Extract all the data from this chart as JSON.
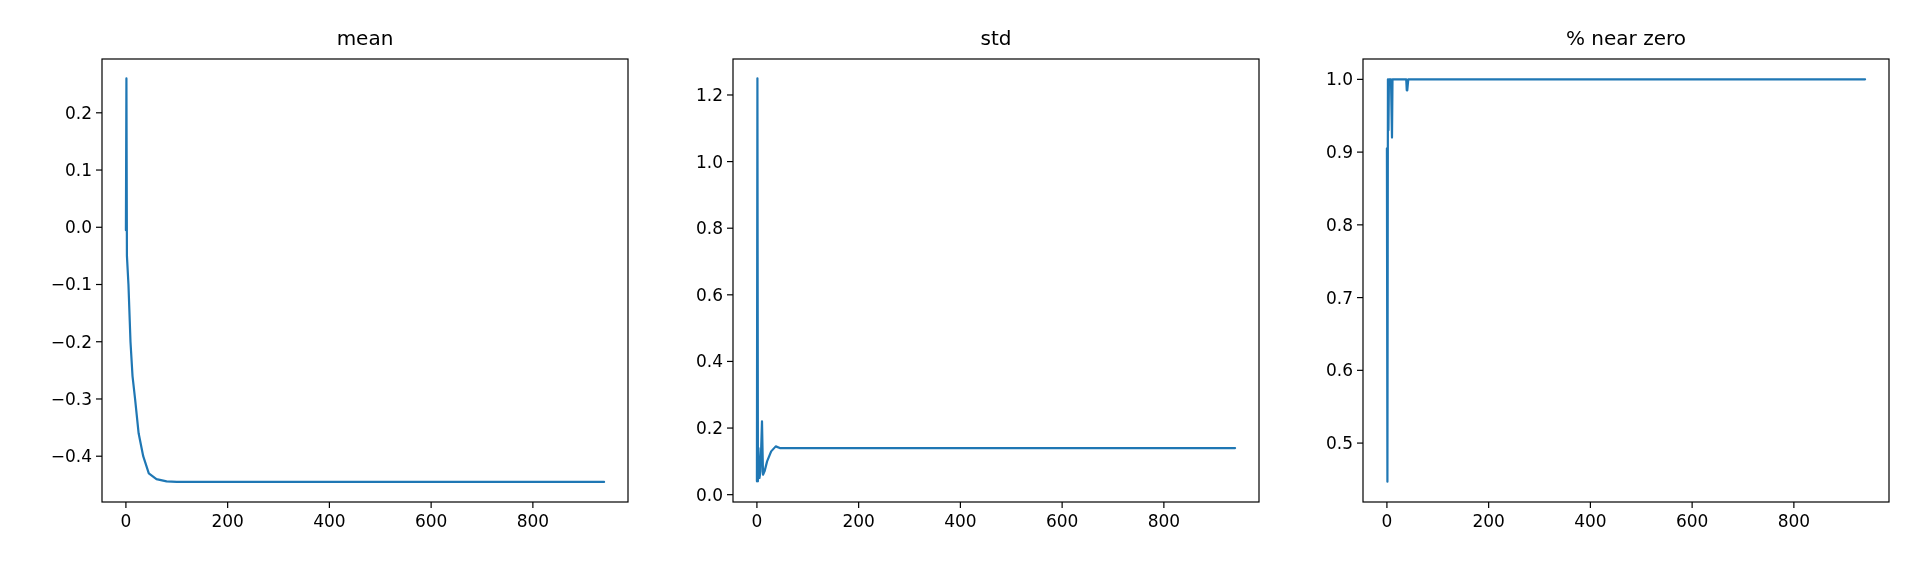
{
  "chart_data": [
    {
      "type": "line",
      "title": "mean",
      "x": [
        0,
        1,
        2,
        5,
        9,
        13,
        18,
        25,
        34,
        45,
        60,
        80,
        100,
        940
      ],
      "series": [
        {
          "color": "#1f77b4",
          "values": [
            -0.005,
            0.26,
            -0.05,
            -0.1,
            -0.2,
            -0.26,
            -0.3,
            -0.36,
            -0.4,
            -0.43,
            -0.44,
            -0.444,
            -0.445,
            -0.445
          ]
        }
      ],
      "xlim": [
        -47,
        987
      ],
      "ylim": [
        -0.48,
        0.294
      ],
      "xticks": [
        0,
        200,
        400,
        600,
        800
      ],
      "yticks": [
        {
          "value": -0.4,
          "label": "−0.4"
        },
        {
          "value": -0.3,
          "label": "−0.3"
        },
        {
          "value": -0.2,
          "label": "−0.2"
        },
        {
          "value": -0.1,
          "label": "−0.1"
        },
        {
          "value": 0,
          "label": "0.0"
        },
        {
          "value": 0.1,
          "label": "0.1"
        },
        {
          "value": 0.2,
          "label": "0.2"
        }
      ]
    },
    {
      "type": "line",
      "title": "std",
      "x": [
        0,
        1,
        2,
        3,
        5,
        7,
        10,
        12,
        15,
        20,
        28,
        37,
        45,
        940
      ],
      "series": [
        {
          "color": "#1f77b4",
          "values": [
            0.04,
            1.25,
            0.04,
            0.14,
            0.05,
            0.07,
            0.22,
            0.06,
            0.07,
            0.1,
            0.13,
            0.145,
            0.14,
            0.14
          ]
        }
      ],
      "xlim": [
        -47,
        987
      ],
      "ylim": [
        -0.022,
        1.308
      ],
      "xticks": [
        0,
        200,
        400,
        600,
        800
      ],
      "yticks": [
        {
          "value": 0,
          "label": "0.0"
        },
        {
          "value": 0.2,
          "label": "0.2"
        },
        {
          "value": 0.4,
          "label": "0.4"
        },
        {
          "value": 0.6,
          "label": "0.6"
        },
        {
          "value": 0.8,
          "label": "0.8"
        },
        {
          "value": 1,
          "label": "1.0"
        },
        {
          "value": 1.2,
          "label": "1.2"
        }
      ]
    },
    {
      "type": "line",
      "title": "% near zero",
      "x": [
        0,
        1,
        2,
        3,
        4,
        8,
        10,
        11,
        38,
        39,
        40,
        42,
        940
      ],
      "series": [
        {
          "color": "#1f77b4",
          "values": [
            0.905,
            0.447,
            1.0,
            0.93,
            1.0,
            1.0,
            0.92,
            1.0,
            1.0,
            0.985,
            0.985,
            1.0,
            1.0
          ]
        }
      ],
      "xlim": [
        -47,
        987
      ],
      "ylim": [
        0.419,
        1.028
      ],
      "xticks": [
        0,
        200,
        400,
        600,
        800
      ],
      "yticks": [
        {
          "value": 0.5,
          "label": "0.5"
        },
        {
          "value": 0.6,
          "label": "0.6"
        },
        {
          "value": 0.7,
          "label": "0.7"
        },
        {
          "value": 0.8,
          "label": "0.8"
        },
        {
          "value": 0.9,
          "label": "0.9"
        },
        {
          "value": 1,
          "label": "1.0"
        }
      ]
    }
  ]
}
